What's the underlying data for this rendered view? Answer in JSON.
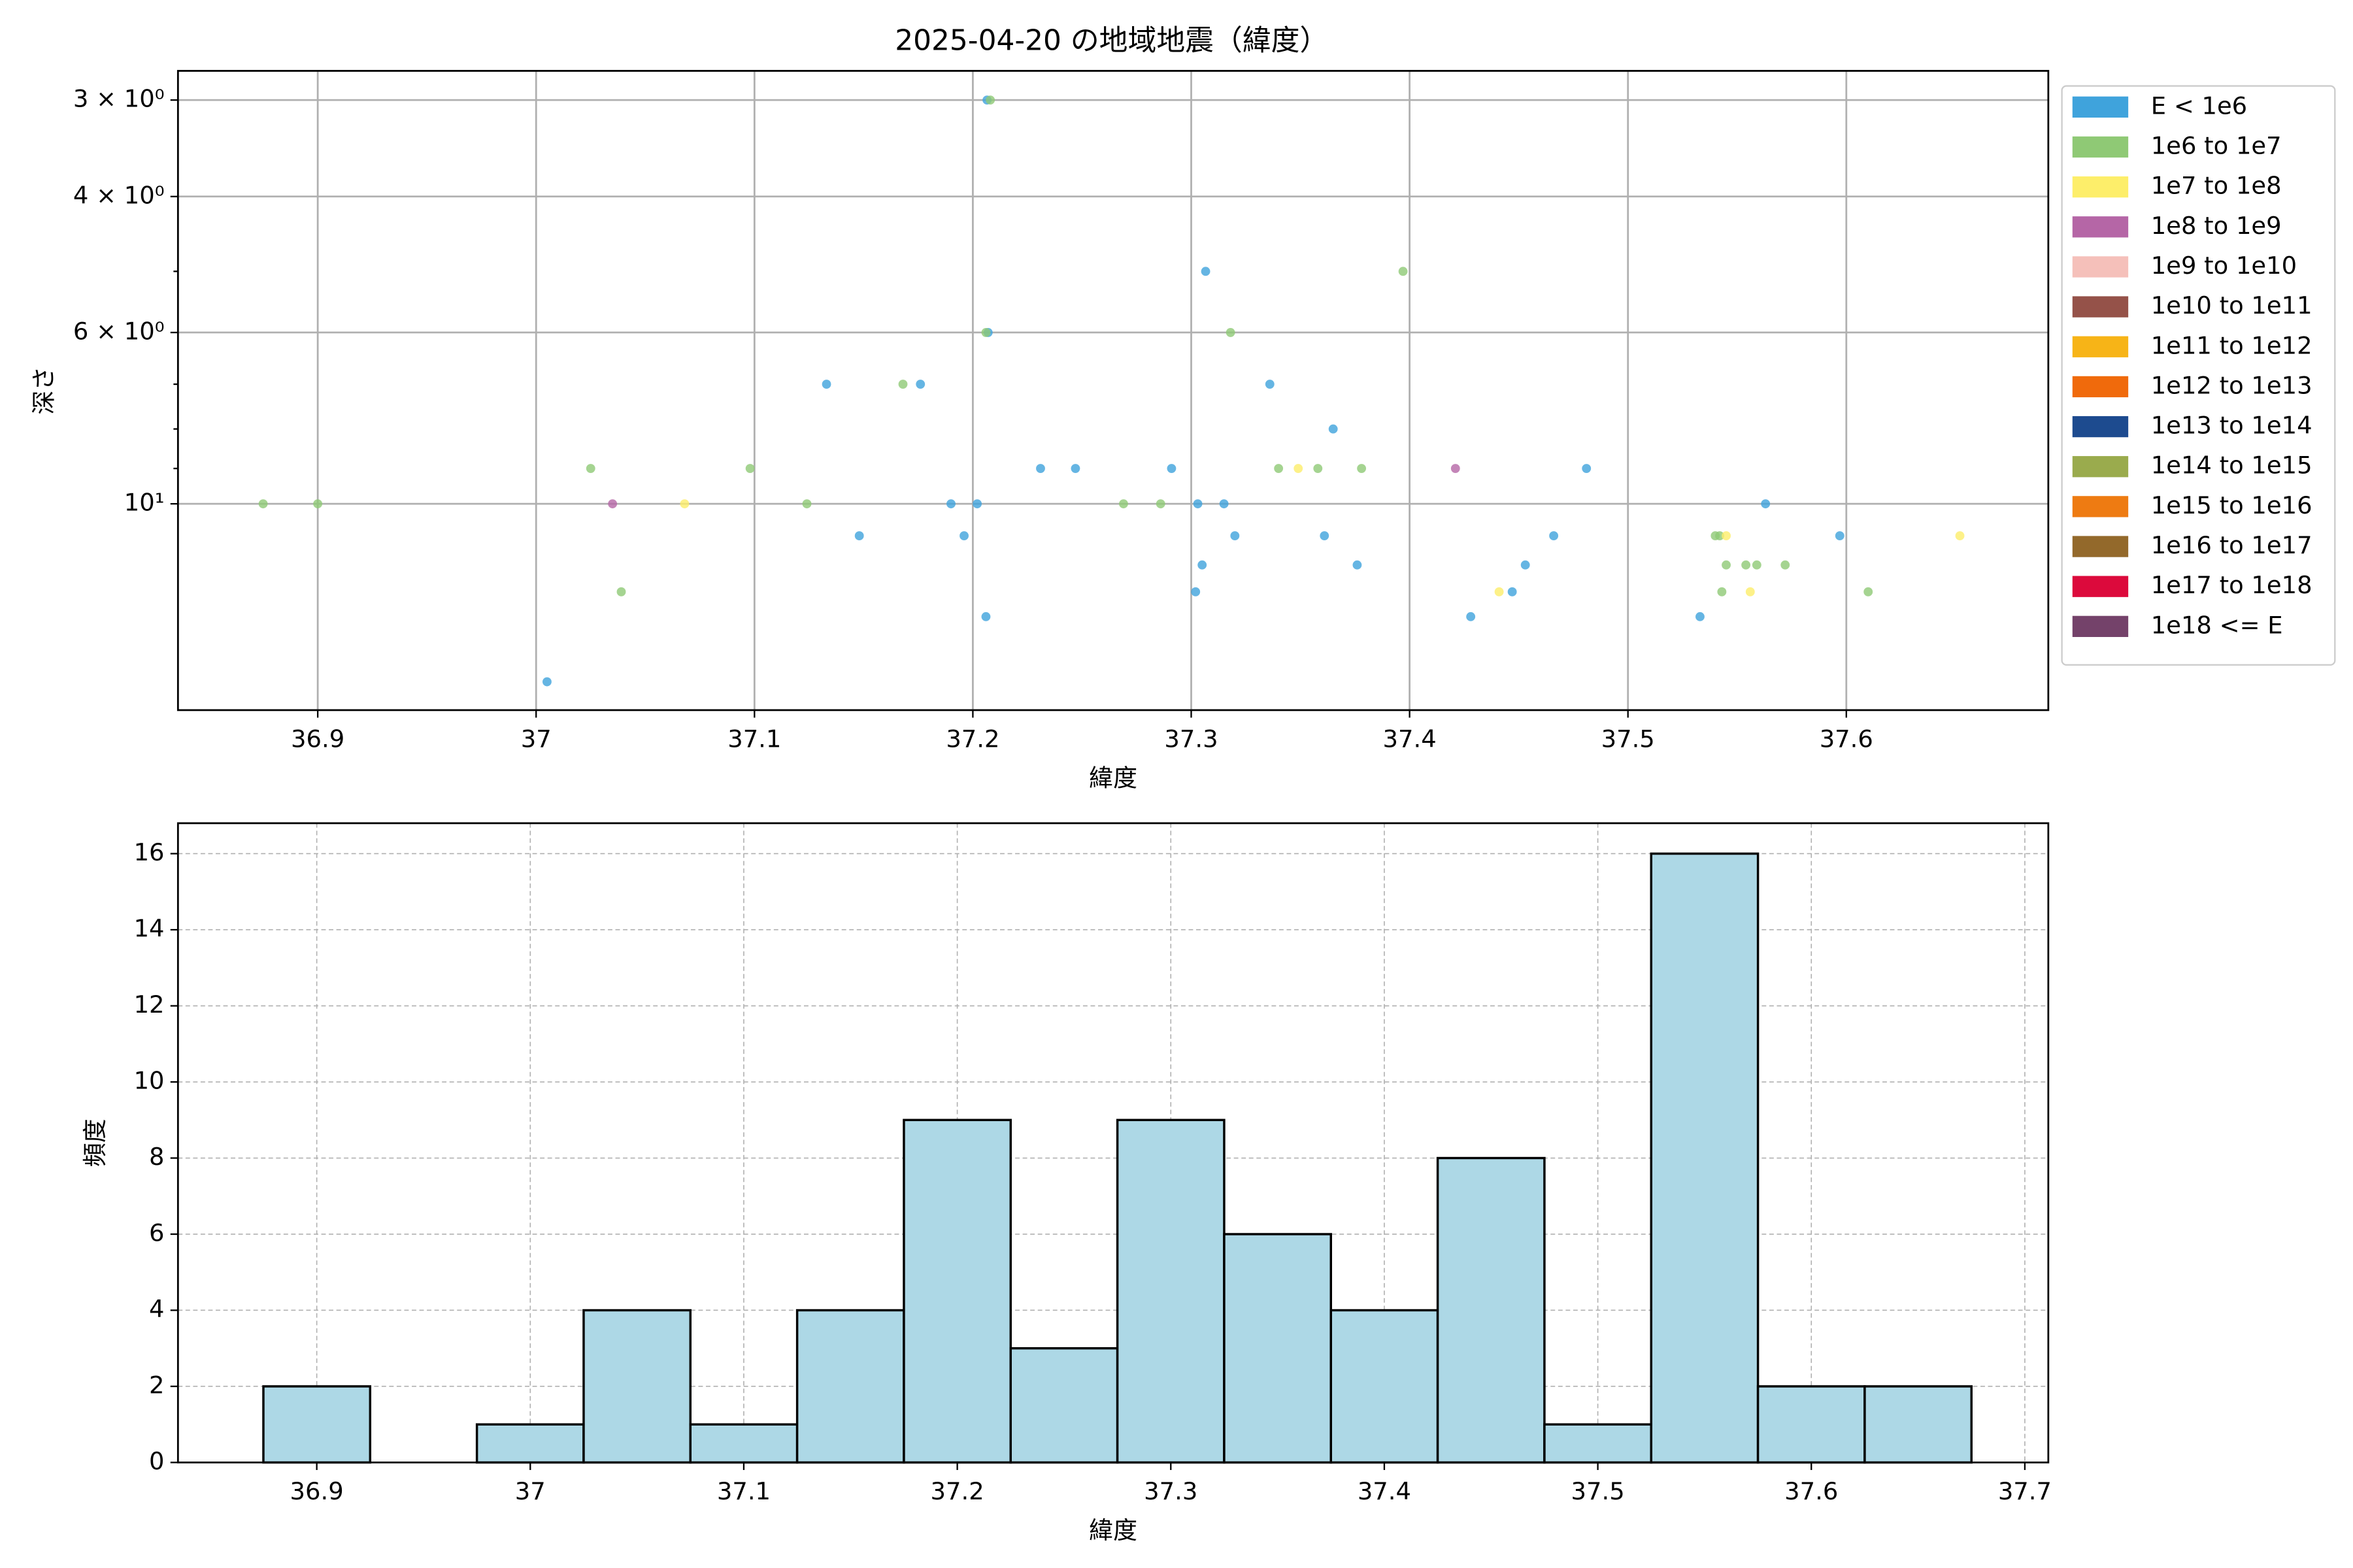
{
  "chart_data": [
    {
      "type": "scatter",
      "title": "2025-04-20 の地域地震（緯度）",
      "x_label": "緯度",
      "y_label": "深さ",
      "xlim": [
        36.836,
        37.6925
      ],
      "xticks": [
        36.9,
        37.0,
        37.1,
        37.2,
        37.3,
        37.4,
        37.5,
        37.6
      ],
      "ylim": [
        18.5,
        2.75
      ],
      "yscale": "log",
      "yticks": [
        {
          "value": 3,
          "label": "3 × 10⁰"
        },
        {
          "value": 4,
          "label": "4 × 10⁰"
        },
        {
          "value": 6,
          "label": "6 × 10⁰"
        },
        {
          "value": 10,
          "label": "10¹"
        }
      ],
      "yminorticks": [
        5,
        7,
        8,
        9
      ],
      "grid": true,
      "grid_linestyle": "solid",
      "legend": "outside upper right",
      "series": [
        {
          "name": "E < 1e6",
          "color": "#3fa3dc",
          "x": [
            37.2065,
            37.3066,
            37.133,
            37.176,
            37.207,
            37.336,
            37.365,
            37.231,
            37.247,
            37.291,
            37.481,
            37.19,
            37.202,
            37.303,
            37.315,
            37.563,
            37.148,
            37.196,
            37.32,
            37.361,
            37.466,
            37.597,
            37.305,
            37.376,
            37.453,
            37.302,
            37.447,
            37.206,
            37.428,
            37.533,
            37.005
          ],
          "values": [
            3,
            5,
            7,
            7,
            6,
            7,
            8,
            9,
            9,
            9,
            9,
            10,
            10,
            10,
            10,
            10,
            11,
            11,
            11,
            11,
            11,
            11,
            12,
            12,
            12,
            13,
            13,
            14,
            14,
            14,
            17
          ]
        },
        {
          "name": "1e6 to 1e7",
          "color": "#8fc975",
          "x": [
            37.208,
            37.397,
            37.206,
            37.318,
            37.168,
            37.025,
            37.098,
            37.34,
            37.358,
            37.378,
            36.875,
            36.9,
            37.124,
            37.269,
            37.286,
            37.54,
            37.542,
            37.545,
            37.554,
            37.559,
            37.572,
            37.039,
            37.543,
            37.61
          ],
          "values": [
            3,
            5,
            6,
            6,
            7,
            9,
            9,
            9,
            9,
            9,
            10,
            10,
            10,
            10,
            10,
            11,
            11,
            12,
            12,
            12,
            12,
            13,
            13,
            13
          ]
        },
        {
          "name": "1e7 to 1e8",
          "color": "#fdee6a",
          "x": [
            37.349,
            37.068,
            37.545,
            37.652,
            37.441,
            37.556
          ],
          "values": [
            9,
            10,
            11,
            11,
            13,
            13
          ]
        },
        {
          "name": "1e8 to 1e9",
          "color": "#b566a6",
          "x": [
            37.035,
            37.421
          ],
          "values": [
            10,
            9
          ]
        },
        {
          "name": "1e9 to 1e10",
          "color": "#f5c0ba",
          "x": [],
          "values": []
        },
        {
          "name": "1e10 to 1e11",
          "color": "#955249",
          "x": [],
          "values": []
        },
        {
          "name": "1e11 to 1e12",
          "color": "#f7b417",
          "x": [],
          "values": []
        },
        {
          "name": "1e12 to 1e13",
          "color": "#f06a0c",
          "x": [],
          "values": []
        },
        {
          "name": "1e13 to 1e14",
          "color": "#1d4b8f",
          "x": [],
          "values": []
        },
        {
          "name": "1e14 to 1e15",
          "color": "#9aab4d",
          "x": [],
          "values": []
        },
        {
          "name": "1e15 to 1e16",
          "color": "#ee7b12",
          "x": [],
          "values": []
        },
        {
          "name": "1e16 to 1e17",
          "color": "#93692b",
          "x": [],
          "values": []
        },
        {
          "name": "1e17 to 1e18",
          "color": "#dc0a3c",
          "x": [],
          "values": []
        },
        {
          "name": "1e18 <= E",
          "color": "#74426a",
          "x": [],
          "values": []
        }
      ]
    },
    {
      "type": "histogram",
      "x_label": "緯度",
      "y_label": "頻度",
      "xlim": [
        36.835,
        37.711
      ],
      "xticks": [
        36.9,
        37.0,
        37.1,
        37.2,
        37.3,
        37.4,
        37.5,
        37.6,
        37.7
      ],
      "ylim": [
        0,
        16.8
      ],
      "yticks": [
        0,
        2,
        4,
        6,
        8,
        10,
        12,
        14,
        16
      ],
      "grid": true,
      "grid_linestyle": "dashed",
      "color": "#add8e6",
      "edgecolor": "#000000",
      "bins": [
        36.875,
        36.925,
        36.975,
        37.025,
        37.075,
        37.125,
        37.175,
        37.225,
        37.275,
        37.325,
        37.375,
        37.425,
        37.475,
        37.525,
        37.575,
        37.625,
        37.675
      ],
      "values": [
        2,
        0,
        1,
        4,
        1,
        4,
        9,
        3,
        9,
        6,
        4,
        8,
        1,
        16,
        2,
        2
      ]
    }
  ]
}
